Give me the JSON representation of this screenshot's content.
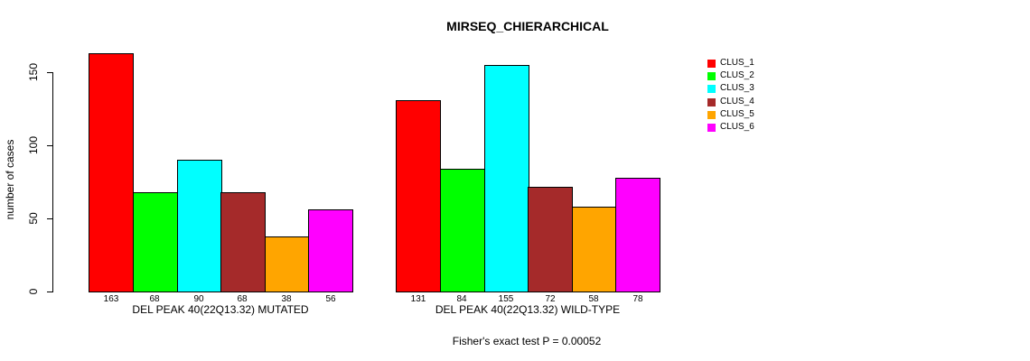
{
  "chart_data": {
    "type": "bar",
    "title": "MIRSEQ_CHIERARCHICAL",
    "ylabel": "number of cases",
    "xlabel": "",
    "ylim": [
      0,
      150
    ],
    "yticks": [
      0,
      50,
      100,
      150
    ],
    "grid": false,
    "legend_position": "right",
    "series_labels": [
      "CLUS_1",
      "CLUS_2",
      "CLUS_3",
      "CLUS_4",
      "CLUS_5",
      "CLUS_6"
    ],
    "colors": [
      "#FF0000",
      "#00FF00",
      "#00FFFF",
      "#A52A2A",
      "#FFA500",
      "#FF00FF"
    ],
    "groups": [
      {
        "label": "DEL PEAK 40(22Q13.32) MUTATED",
        "values": [
          163,
          68,
          90,
          68,
          38,
          56
        ]
      },
      {
        "label": "DEL PEAK 40(22Q13.32) WILD-TYPE",
        "values": [
          131,
          84,
          155,
          72,
          58,
          78
        ]
      }
    ],
    "annotation": "Fisher's exact test P = 0.00052"
  }
}
